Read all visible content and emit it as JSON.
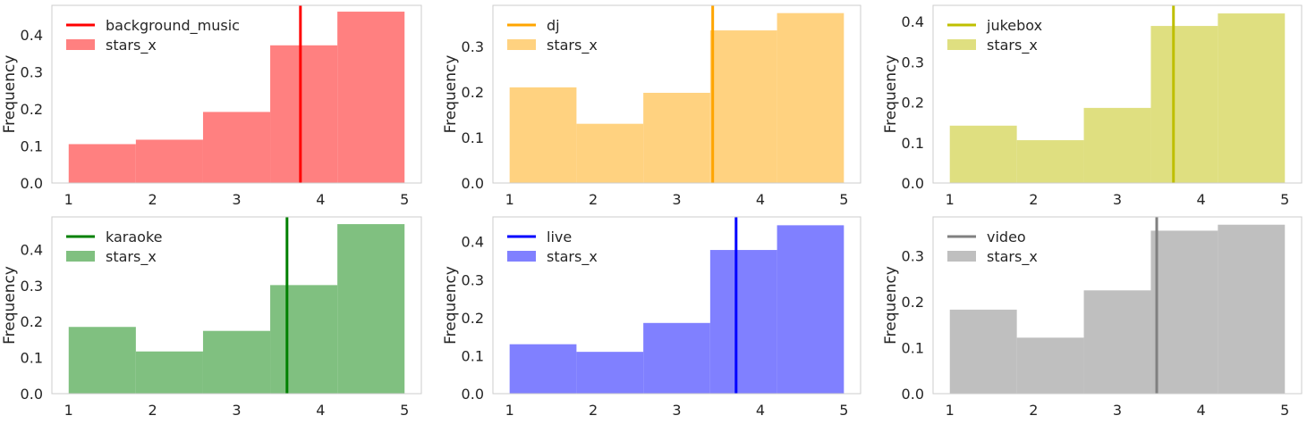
{
  "chart_data": [
    {
      "type": "bar",
      "series_name": "stars_x",
      "legend": [
        {
          "label": "background_music",
          "kind": "line"
        },
        {
          "label": "stars_x",
          "kind": "patch"
        }
      ],
      "bins": [
        [
          1.0,
          1.8
        ],
        [
          1.8,
          2.6
        ],
        [
          2.6,
          3.4
        ],
        [
          3.4,
          4.2
        ],
        [
          4.2,
          5.0
        ]
      ],
      "values": [
        0.105,
        0.117,
        0.192,
        0.372,
        0.463
      ],
      "mean_line": 3.76,
      "ylim": [
        0,
        0.48
      ],
      "xlim": [
        0.8,
        5.2
      ],
      "yticks": [
        "0.0",
        "0.1",
        "0.2",
        "0.3",
        "0.4"
      ],
      "xticks": [
        "1",
        "2",
        "3",
        "4",
        "5"
      ],
      "xlabel": "",
      "ylabel": "Frequency",
      "bar_color": "#ff8080",
      "line_color": "#ff0000"
    },
    {
      "type": "bar",
      "series_name": "stars_x",
      "legend": [
        {
          "label": "dj",
          "kind": "line"
        },
        {
          "label": "stars_x",
          "kind": "patch"
        }
      ],
      "bins": [
        [
          1.0,
          1.8
        ],
        [
          1.8,
          2.6
        ],
        [
          2.6,
          3.4
        ],
        [
          3.4,
          4.2
        ],
        [
          4.2,
          5.0
        ]
      ],
      "values": [
        0.21,
        0.13,
        0.198,
        0.335,
        0.373
      ],
      "mean_line": 3.43,
      "ylim": [
        0,
        0.39
      ],
      "xlim": [
        0.8,
        5.2
      ],
      "yticks": [
        "0.0",
        "0.1",
        "0.2",
        "0.3"
      ],
      "xticks": [
        "1",
        "2",
        "3",
        "4",
        "5"
      ],
      "xlabel": "",
      "ylabel": "Frequency",
      "bar_color": "#ffd280",
      "line_color": "#ffa500"
    },
    {
      "type": "bar",
      "series_name": "stars_x",
      "legend": [
        {
          "label": "jukebox",
          "kind": "line"
        },
        {
          "label": "stars_x",
          "kind": "patch"
        }
      ],
      "bins": [
        [
          1.0,
          1.8
        ],
        [
          1.8,
          2.6
        ],
        [
          2.6,
          3.4
        ],
        [
          3.4,
          4.2
        ],
        [
          4.2,
          5.0
        ]
      ],
      "values": [
        0.142,
        0.106,
        0.186,
        0.389,
        0.42
      ],
      "mean_line": 3.67,
      "ylim": [
        0,
        0.44
      ],
      "xlim": [
        0.8,
        5.2
      ],
      "yticks": [
        "0.0",
        "0.1",
        "0.2",
        "0.3",
        "0.4"
      ],
      "xticks": [
        "1",
        "2",
        "3",
        "4",
        "5"
      ],
      "xlabel": "",
      "ylabel": "Frequency",
      "bar_color": "#dfdf80",
      "line_color": "#bfbf00"
    },
    {
      "type": "bar",
      "series_name": "stars_x",
      "legend": [
        {
          "label": "karaoke",
          "kind": "line"
        },
        {
          "label": "stars_x",
          "kind": "patch"
        }
      ],
      "bins": [
        [
          1.0,
          1.8
        ],
        [
          1.8,
          2.6
        ],
        [
          2.6,
          3.4
        ],
        [
          3.4,
          4.2
        ],
        [
          4.2,
          5.0
        ]
      ],
      "values": [
        0.185,
        0.117,
        0.174,
        0.301,
        0.47
      ],
      "mean_line": 3.6,
      "ylim": [
        0,
        0.49
      ],
      "xlim": [
        0.8,
        5.2
      ],
      "yticks": [
        "0.0",
        "0.1",
        "0.2",
        "0.3",
        "0.4"
      ],
      "xticks": [
        "1",
        "2",
        "3",
        "4",
        "5"
      ],
      "xlabel": "",
      "ylabel": "Frequency",
      "bar_color": "#80c080",
      "line_color": "#008000"
    },
    {
      "type": "bar",
      "series_name": "stars_x",
      "legend": [
        {
          "label": "live",
          "kind": "line"
        },
        {
          "label": "stars_x",
          "kind": "patch"
        }
      ],
      "bins": [
        [
          1.0,
          1.8
        ],
        [
          1.8,
          2.6
        ],
        [
          2.6,
          3.4
        ],
        [
          3.4,
          4.2
        ],
        [
          4.2,
          5.0
        ]
      ],
      "values": [
        0.13,
        0.11,
        0.186,
        0.378,
        0.443
      ],
      "mean_line": 3.71,
      "ylim": [
        0,
        0.465
      ],
      "xlim": [
        0.8,
        5.2
      ],
      "yticks": [
        "0.0",
        "0.1",
        "0.2",
        "0.3",
        "0.4"
      ],
      "xticks": [
        "1",
        "2",
        "3",
        "4",
        "5"
      ],
      "xlabel": "",
      "ylabel": "Frequency",
      "bar_color": "#8080ff",
      "line_color": "#0000ff"
    },
    {
      "type": "bar",
      "series_name": "stars_x",
      "legend": [
        {
          "label": "video",
          "kind": "line"
        },
        {
          "label": "stars_x",
          "kind": "patch"
        }
      ],
      "bins": [
        [
          1.0,
          1.8
        ],
        [
          1.8,
          2.6
        ],
        [
          2.6,
          3.4
        ],
        [
          3.4,
          4.2
        ],
        [
          4.2,
          5.0
        ]
      ],
      "values": [
        0.183,
        0.122,
        0.225,
        0.355,
        0.368
      ],
      "mean_line": 3.47,
      "ylim": [
        0,
        0.385
      ],
      "xlim": [
        0.8,
        5.2
      ],
      "yticks": [
        "0.0",
        "0.1",
        "0.2",
        "0.3"
      ],
      "xticks": [
        "1",
        "2",
        "3",
        "4",
        "5"
      ],
      "xlabel": "",
      "ylabel": "Frequency",
      "bar_color": "#bfbfbf",
      "line_color": "#808080"
    }
  ]
}
